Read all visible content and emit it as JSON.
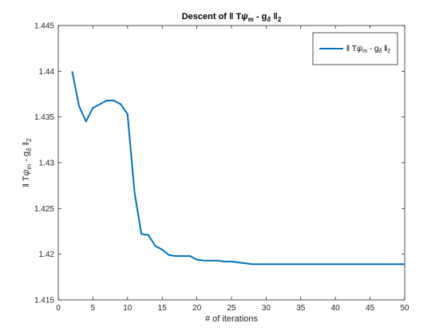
{
  "chart_data": {
    "type": "line",
    "title": {
      "prefix": "Descent of ‖ T",
      "psi": "ψ",
      "psi_sub": "m",
      "mid": " - g",
      "delta_sub": "δ",
      "suffix": " ‖",
      "norm_sub": "2"
    },
    "xlabel": "# of iterations",
    "ylabel": {
      "prefix": "‖ T",
      "psi": "ψ",
      "psi_sub": "m",
      "mid": " - g",
      "delta_sub": "δ",
      "suffix": " ‖",
      "norm_sub": "2"
    },
    "xlim": [
      0,
      50
    ],
    "ylim": [
      1.415,
      1.445
    ],
    "x_ticks": [
      0,
      5,
      10,
      15,
      20,
      25,
      30,
      35,
      40,
      45,
      50
    ],
    "x_tick_labels": [
      "0",
      "5",
      "10",
      "15",
      "20",
      "25",
      "30",
      "35",
      "40",
      "45",
      "50"
    ],
    "y_ticks": [
      1.415,
      1.42,
      1.425,
      1.43,
      1.435,
      1.44,
      1.445
    ],
    "y_tick_labels": [
      "1.415",
      "1.42",
      "1.425",
      "1.43",
      "1.435",
      "1.44",
      "1.445"
    ],
    "grid": false,
    "legend_position": "top-right",
    "series": [
      {
        "name": "‖ Tψm - gδ ‖2",
        "label_parts": {
          "prefix": "‖ T",
          "psi": "ψ",
          "psi_sub": "m",
          "mid": " - g",
          "delta_sub": "δ",
          "suffix": " ‖",
          "norm_sub": "2"
        },
        "color": "#0072BD",
        "x": [
          2,
          3,
          4,
          5,
          6,
          7,
          8,
          9,
          10,
          11,
          12,
          13,
          14,
          15,
          16,
          17,
          18,
          19,
          20,
          21,
          22,
          23,
          24,
          25,
          26,
          27,
          28,
          29,
          30,
          31,
          32,
          33,
          34,
          35,
          36,
          37,
          38,
          39,
          40,
          41,
          42,
          43,
          44,
          45,
          46,
          47,
          48,
          49,
          50
        ],
        "y": [
          1.44,
          1.4362,
          1.4345,
          1.436,
          1.4364,
          1.4368,
          1.4368,
          1.4364,
          1.4353,
          1.4268,
          1.4222,
          1.4221,
          1.4209,
          1.4205,
          1.4199,
          1.4198,
          1.4198,
          1.4198,
          1.4194,
          1.4193,
          1.4193,
          1.4193,
          1.4192,
          1.4192,
          1.4191,
          1.419,
          1.4189,
          1.4189,
          1.4189,
          1.4189,
          1.4189,
          1.4189,
          1.4189,
          1.4189,
          1.4189,
          1.4189,
          1.4189,
          1.4189,
          1.4189,
          1.4189,
          1.4189,
          1.4189,
          1.4189,
          1.4189,
          1.4189,
          1.4189,
          1.4189,
          1.4189,
          1.4189
        ]
      }
    ]
  }
}
